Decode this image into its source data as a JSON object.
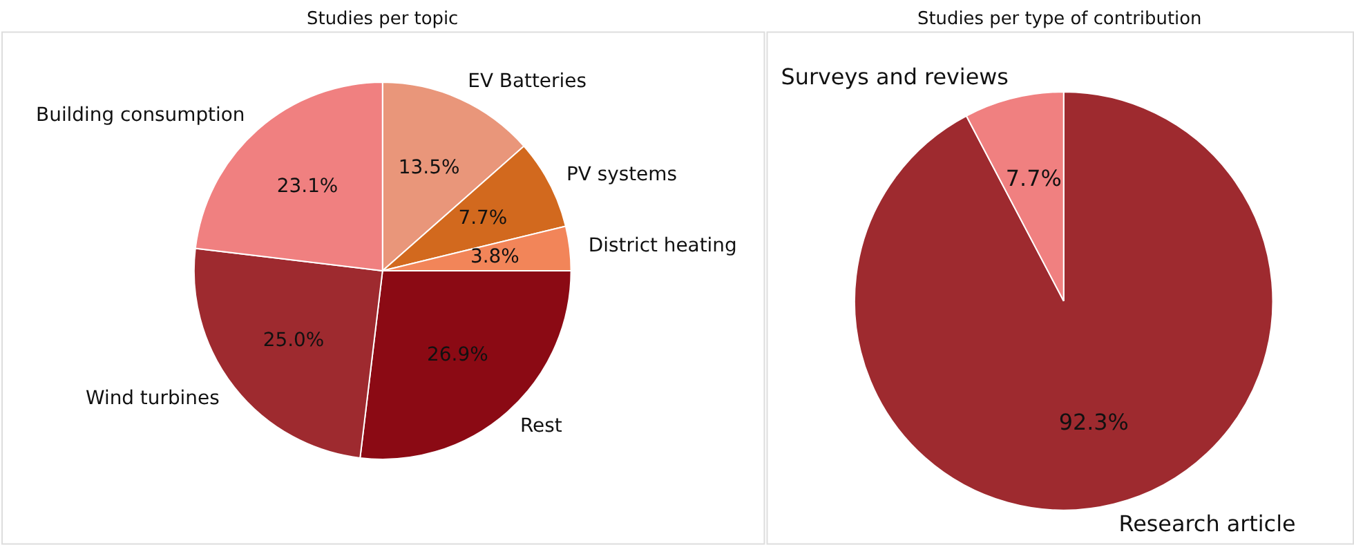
{
  "chart_data": [
    {
      "type": "pie",
      "title": "Studies per topic",
      "categories": [
        "EV Batteries",
        "PV systems",
        "District heating",
        "Rest",
        "Wind turbines",
        "Building consumption"
      ],
      "values": [
        13.5,
        7.7,
        3.8,
        26.9,
        25.0,
        23.1
      ],
      "colors": [
        "#e9967a",
        "#d2691e",
        "#f28559",
        "#8b0a14",
        "#9e2a2f",
        "#f08080"
      ],
      "value_labels": [
        "13.5%",
        "7.7%",
        "3.8%",
        "26.9%",
        "25.0%",
        "23.1%"
      ]
    },
    {
      "type": "pie",
      "title": "Studies per type of contribution",
      "categories": [
        "Research article",
        "Surveys and reviews"
      ],
      "values": [
        92.3,
        7.7
      ],
      "colors": [
        "#9e2a2f",
        "#f08080"
      ],
      "value_labels": [
        "92.3%",
        "7.7%"
      ]
    }
  ]
}
